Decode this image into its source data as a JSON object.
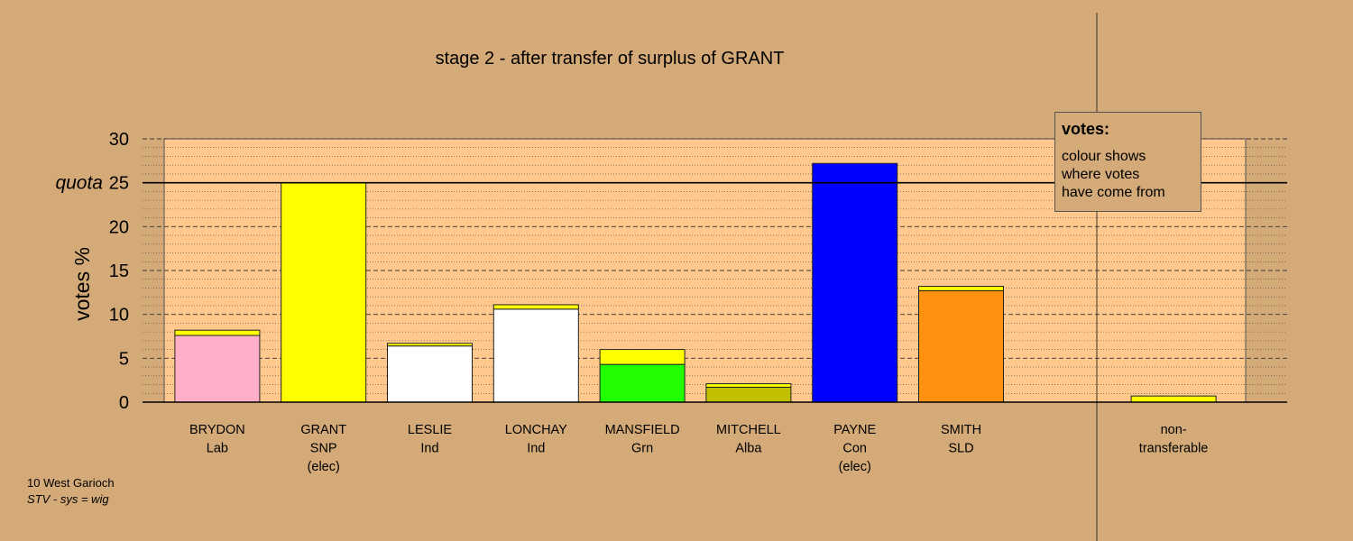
{
  "chart_data": {
    "type": "bar",
    "title": "stage 2 - after transfer of surplus of GRANT",
    "ylabel": "votes %",
    "ylim": [
      0,
      30
    ],
    "yticks": [
      0,
      5,
      10,
      15,
      20,
      25,
      30
    ],
    "quota": 25,
    "quota_label": "quota",
    "grid": true,
    "categories": [
      {
        "name": "BRYDON",
        "party": "Lab",
        "status": ""
      },
      {
        "name": "GRANT",
        "party": "SNP",
        "status": "(elec)"
      },
      {
        "name": "LESLIE",
        "party": "Ind",
        "status": ""
      },
      {
        "name": "LONCHAY",
        "party": "Ind",
        "status": ""
      },
      {
        "name": "MANSFIELD",
        "party": "Grn",
        "status": ""
      },
      {
        "name": "MITCHELL",
        "party": "Alba",
        "status": ""
      },
      {
        "name": "PAYNE",
        "party": "Con",
        "status": "(elec)"
      },
      {
        "name": "SMITH",
        "party": "SLD",
        "status": ""
      },
      {
        "name": "",
        "party": "",
        "status": ""
      },
      {
        "name": "non-",
        "party": "transferable",
        "status": ""
      }
    ],
    "bars": [
      {
        "segments": [
          {
            "value": 7.6,
            "color": "#ffb0c8"
          },
          {
            "value": 0.6,
            "color": "#ffff00"
          }
        ]
      },
      {
        "segments": [
          {
            "value": 25.0,
            "color": "#ffff00"
          }
        ]
      },
      {
        "segments": [
          {
            "value": 6.4,
            "color": "#ffffff"
          },
          {
            "value": 0.3,
            "color": "#ffff00"
          }
        ]
      },
      {
        "segments": [
          {
            "value": 10.6,
            "color": "#ffffff"
          },
          {
            "value": 0.5,
            "color": "#ffff00"
          }
        ]
      },
      {
        "segments": [
          {
            "value": 4.3,
            "color": "#22ff00"
          },
          {
            "value": 1.7,
            "color": "#ffff00"
          }
        ]
      },
      {
        "segments": [
          {
            "value": 1.7,
            "color": "#c0c000"
          },
          {
            "value": 0.4,
            "color": "#ffff00"
          }
        ]
      },
      {
        "segments": [
          {
            "value": 27.2,
            "color": "#0000ff"
          }
        ]
      },
      {
        "segments": [
          {
            "value": 12.7,
            "color": "#ff9010"
          },
          {
            "value": 0.5,
            "color": "#ffff00"
          }
        ]
      },
      {
        "segments": []
      },
      {
        "segments": [
          {
            "value": 0.7,
            "color": "#ffff00"
          }
        ]
      }
    ]
  },
  "legend": {
    "title": "votes:",
    "lines": [
      "colour shows",
      "where votes",
      "have come from"
    ]
  },
  "footnote": {
    "line1": "10 West Garioch",
    "line2": "STV - sys = wig"
  },
  "colors": {
    "background": "#d4aa78",
    "plot_area": "#ffc88c"
  }
}
